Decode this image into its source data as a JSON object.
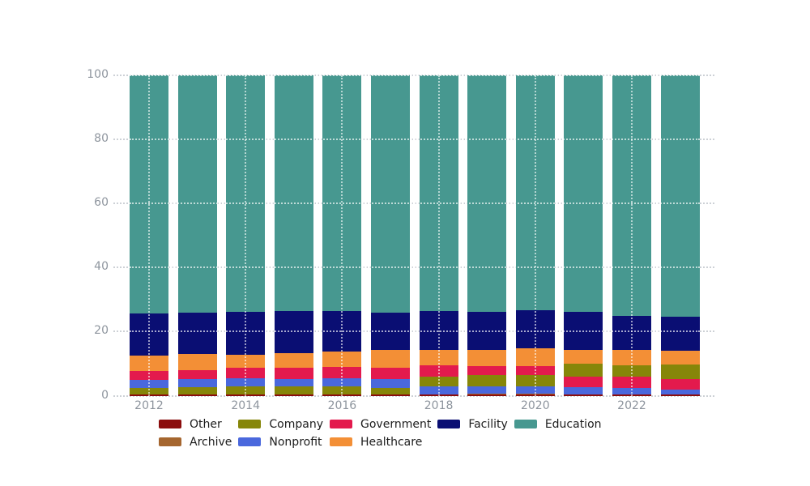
{
  "chart_data": {
    "type": "bar",
    "stacked": true,
    "normalized_percent": true,
    "title": "",
    "xlabel": "",
    "ylabel": "",
    "ylim": [
      0,
      100
    ],
    "grid": "dotted",
    "legend_position": "bottom",
    "y_ticks": [
      "0",
      "20",
      "40",
      "60",
      "80",
      "100"
    ],
    "x_ticks": [
      "2012",
      "2014",
      "2016",
      "2018",
      "2020",
      "2022"
    ],
    "categories": [
      "Other",
      "Archive",
      "Company",
      "Nonprofit",
      "Government",
      "Healthcare",
      "Facility",
      "Education"
    ],
    "colors": {
      "Other": "#8b0d0d",
      "Archive": "#a5662f",
      "Company": "#868609",
      "Nonprofit": "#4a68dd",
      "Government": "#e31a4d",
      "Healthcare": "#f38f36",
      "Facility": "#0a0e73",
      "Education": "#479890"
    },
    "note": "segments listed bottom-to-top as rendered in each bar; values are percents",
    "bars": [
      {
        "year": "2012",
        "segments": [
          [
            "Other",
            0.3
          ],
          [
            "Archive",
            0.2
          ],
          [
            "Company",
            2.0
          ],
          [
            "Nonprofit",
            2.4
          ],
          [
            "Government",
            2.9
          ],
          [
            "Healthcare",
            4.7
          ],
          [
            "Facility",
            13.1
          ],
          [
            "Education",
            74.4
          ]
        ]
      },
      {
        "year": "2013",
        "segments": [
          [
            "Other",
            0.3
          ],
          [
            "Archive",
            0.2
          ],
          [
            "Company",
            2.1
          ],
          [
            "Nonprofit",
            2.5
          ],
          [
            "Government",
            2.9
          ],
          [
            "Healthcare",
            4.9
          ],
          [
            "Facility",
            13.1
          ],
          [
            "Education",
            74.0
          ]
        ]
      },
      {
        "year": "2014",
        "segments": [
          [
            "Other",
            0.3
          ],
          [
            "Archive",
            0.2
          ],
          [
            "Company",
            2.4
          ],
          [
            "Nonprofit",
            2.5
          ],
          [
            "Government",
            3.3
          ],
          [
            "Healthcare",
            4.0
          ],
          [
            "Facility",
            13.5
          ],
          [
            "Education",
            73.8
          ]
        ]
      },
      {
        "year": "2015",
        "segments": [
          [
            "Other",
            0.3
          ],
          [
            "Archive",
            0.2
          ],
          [
            "Company",
            2.3
          ],
          [
            "Nonprofit",
            2.4
          ],
          [
            "Government",
            3.4
          ],
          [
            "Healthcare",
            4.6
          ],
          [
            "Facility",
            13.3
          ],
          [
            "Education",
            73.5
          ]
        ]
      },
      {
        "year": "2016",
        "segments": [
          [
            "Other",
            0.3
          ],
          [
            "Archive",
            0.2
          ],
          [
            "Company",
            2.4
          ],
          [
            "Nonprofit",
            2.6
          ],
          [
            "Government",
            3.4
          ],
          [
            "Healthcare",
            5.0
          ],
          [
            "Facility",
            12.5
          ],
          [
            "Education",
            73.6
          ]
        ]
      },
      {
        "year": "2017",
        "segments": [
          [
            "Other",
            0.3
          ],
          [
            "Archive",
            0.2
          ],
          [
            "Company",
            2.0
          ],
          [
            "Nonprofit",
            2.7
          ],
          [
            "Government",
            3.6
          ],
          [
            "Healthcare",
            5.4
          ],
          [
            "Facility",
            11.8
          ],
          [
            "Education",
            74.0
          ]
        ]
      },
      {
        "year": "2018",
        "segments": [
          [
            "Other",
            0.3
          ],
          [
            "Archive",
            0.2
          ],
          [
            "Nonprofit",
            2.3
          ],
          [
            "Company",
            3.2
          ],
          [
            "Government",
            3.4
          ],
          [
            "Healthcare",
            4.8
          ],
          [
            "Facility",
            12.3
          ],
          [
            "Education",
            73.5
          ]
        ]
      },
      {
        "year": "2019",
        "segments": [
          [
            "Other",
            0.3
          ],
          [
            "Archive",
            0.3
          ],
          [
            "Nonprofit",
            2.4
          ],
          [
            "Company",
            3.4
          ],
          [
            "Government",
            2.7
          ],
          [
            "Healthcare",
            5.3
          ],
          [
            "Facility",
            11.8
          ],
          [
            "Education",
            73.8
          ]
        ]
      },
      {
        "year": "2020",
        "segments": [
          [
            "Other",
            0.3
          ],
          [
            "Archive",
            0.3
          ],
          [
            "Nonprofit",
            2.4
          ],
          [
            "Company",
            3.5
          ],
          [
            "Government",
            2.8
          ],
          [
            "Healthcare",
            5.6
          ],
          [
            "Facility",
            11.8
          ],
          [
            "Education",
            73.3
          ]
        ]
      },
      {
        "year": "2021",
        "segments": [
          [
            "Other",
            0.3
          ],
          [
            "Archive",
            0.2
          ],
          [
            "Nonprofit",
            2.1
          ],
          [
            "Government",
            3.3
          ],
          [
            "Company",
            4.0
          ],
          [
            "Healthcare",
            4.5
          ],
          [
            "Facility",
            11.7
          ],
          [
            "Education",
            73.9
          ]
        ]
      },
      {
        "year": "2022",
        "segments": [
          [
            "Other",
            0.3
          ],
          [
            "Archive",
            0.2
          ],
          [
            "Nonprofit",
            1.8
          ],
          [
            "Government",
            3.6
          ],
          [
            "Company",
            3.6
          ],
          [
            "Healthcare",
            4.8
          ],
          [
            "Facility",
            10.7
          ],
          [
            "Education",
            75.0
          ]
        ]
      },
      {
        "year": "2023",
        "segments": [
          [
            "Other",
            0.3
          ],
          [
            "Archive",
            0.2
          ],
          [
            "Nonprofit",
            1.4
          ],
          [
            "Government",
            3.2
          ],
          [
            "Company",
            4.6
          ],
          [
            "Healthcare",
            4.4
          ],
          [
            "Facility",
            10.6
          ],
          [
            "Education",
            75.3
          ]
        ]
      }
    ]
  },
  "legend": {
    "columns": [
      [
        "Other",
        "Archive"
      ],
      [
        "Company",
        "Nonprofit"
      ],
      [
        "Government",
        "Healthcare"
      ],
      [
        "Facility"
      ],
      [
        "Education"
      ]
    ]
  }
}
